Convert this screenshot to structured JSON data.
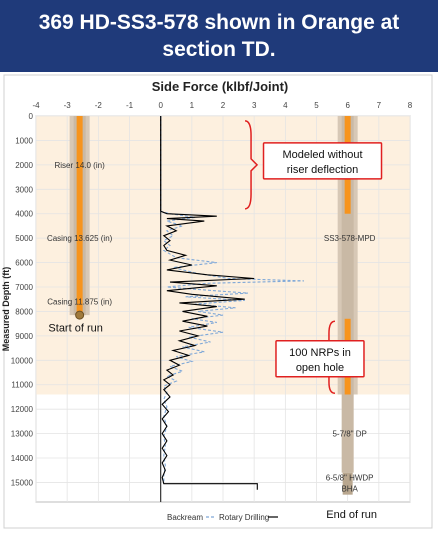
{
  "header": {
    "title": "369 HD-SS3-578 shown in Orange at section TD."
  },
  "chart_data": {
    "type": "line",
    "title": "Side Force (klbf/Joint)",
    "xlabel": "",
    "ylabel": "Measured Depth (ft)",
    "xlim": [
      -4,
      8
    ],
    "ylim": [
      0,
      15800
    ],
    "x_ticks": [
      "-4",
      "-3",
      "-2",
      "-1",
      "0",
      "1",
      "2",
      "3",
      "4",
      "5",
      "6",
      "7",
      "8"
    ],
    "y_ticks": [
      "0",
      "1000",
      "2000",
      "3000",
      "4000",
      "5000",
      "6000",
      "7000",
      "8000",
      "9000",
      "10000",
      "11000",
      "12000",
      "13000",
      "14000",
      "15000"
    ],
    "grid": true,
    "legend": "bottom",
    "shaded_depth_range": [
      0,
      11400
    ],
    "series": [
      {
        "name": "Backream",
        "color": "#7fa8d8",
        "style": "dashed",
        "points": [
          [
            0,
            0
          ],
          [
            0,
            3900
          ],
          [
            0.3,
            4000
          ],
          [
            1.1,
            4150
          ],
          [
            0.2,
            4300
          ],
          [
            0.7,
            4500
          ],
          [
            0.2,
            4700
          ],
          [
            0.4,
            4900
          ],
          [
            0.1,
            5100
          ],
          [
            0.3,
            5300
          ],
          [
            0.1,
            5500
          ],
          [
            0.5,
            5800
          ],
          [
            1.8,
            6000
          ],
          [
            0.4,
            6200
          ],
          [
            1.2,
            6450
          ],
          [
            2.2,
            6650
          ],
          [
            4.6,
            6750
          ],
          [
            1.5,
            6850
          ],
          [
            0.2,
            7000
          ],
          [
            1.2,
            7100
          ],
          [
            2.8,
            7250
          ],
          [
            0.8,
            7400
          ],
          [
            2.7,
            7550
          ],
          [
            1.1,
            7700
          ],
          [
            2.4,
            7850
          ],
          [
            1.2,
            8000
          ],
          [
            2.0,
            8150
          ],
          [
            1.0,
            8300
          ],
          [
            1.8,
            8450
          ],
          [
            0.9,
            8650
          ],
          [
            2.0,
            8850
          ],
          [
            0.9,
            9050
          ],
          [
            1.6,
            9250
          ],
          [
            0.7,
            9450
          ],
          [
            1.4,
            9650
          ],
          [
            0.5,
            9850
          ],
          [
            1.0,
            10050
          ],
          [
            0.3,
            10250
          ],
          [
            0.7,
            10450
          ],
          [
            0.2,
            10650
          ],
          [
            0.5,
            10850
          ],
          [
            0.1,
            11050
          ],
          [
            0.2,
            11300
          ],
          [
            0.1,
            11600
          ],
          [
            0.2,
            11900
          ],
          [
            0.1,
            12300
          ],
          [
            0.2,
            12700
          ],
          [
            0.1,
            13100
          ],
          [
            0.15,
            13500
          ],
          [
            0.1,
            13900
          ],
          [
            0.15,
            14300
          ],
          [
            0.1,
            14700
          ],
          [
            0.1,
            15050
          ]
        ]
      },
      {
        "name": "Rotary Drilling",
        "color": "#000000",
        "style": "solid",
        "points": [
          [
            0,
            0
          ],
          [
            0,
            3900
          ],
          [
            0.2,
            4000
          ],
          [
            1.8,
            4100
          ],
          [
            0.2,
            4200
          ],
          [
            1.4,
            4300
          ],
          [
            0.2,
            4500
          ],
          [
            0.5,
            4700
          ],
          [
            0.1,
            4900
          ],
          [
            0.3,
            5100
          ],
          [
            0.1,
            5300
          ],
          [
            0.2,
            5500
          ],
          [
            0.8,
            5700
          ],
          [
            0.3,
            5900
          ],
          [
            1.0,
            6100
          ],
          [
            0.2,
            6300
          ],
          [
            1.5,
            6500
          ],
          [
            3.0,
            6650
          ],
          [
            0.3,
            6800
          ],
          [
            1.8,
            6950
          ],
          [
            0.2,
            7150
          ],
          [
            1.0,
            7300
          ],
          [
            2.7,
            7500
          ],
          [
            0.6,
            7650
          ],
          [
            1.8,
            7800
          ],
          [
            0.7,
            8000
          ],
          [
            1.5,
            8200
          ],
          [
            0.7,
            8400
          ],
          [
            1.5,
            8600
          ],
          [
            0.6,
            8800
          ],
          [
            1.2,
            9000
          ],
          [
            0.6,
            9200
          ],
          [
            1.1,
            9400
          ],
          [
            0.4,
            9600
          ],
          [
            0.9,
            9800
          ],
          [
            0.3,
            10000
          ],
          [
            0.6,
            10200
          ],
          [
            0.2,
            10400
          ],
          [
            0.4,
            10600
          ],
          [
            0.1,
            10800
          ],
          [
            0.3,
            11000
          ],
          [
            0.1,
            11200
          ],
          [
            0.3,
            11500
          ],
          [
            0.05,
            11800
          ],
          [
            0.25,
            12100
          ],
          [
            0.05,
            12400
          ],
          [
            0.2,
            12700
          ],
          [
            0.05,
            13000
          ],
          [
            0.2,
            13300
          ],
          [
            0.05,
            13600
          ],
          [
            0.2,
            13900
          ],
          [
            0.05,
            14200
          ],
          [
            0.15,
            14500
          ],
          [
            0.05,
            14800
          ],
          [
            0.1,
            15050
          ],
          [
            3.1,
            15050
          ],
          [
            3.1,
            15300
          ]
        ]
      }
    ],
    "casing_labels": [
      {
        "text": "Riser 14.0 (in)",
        "depth": 2000
      },
      {
        "text": "Casing 13.625 (in)",
        "depth": 5000
      },
      {
        "text": "Casing 11.875 (in)",
        "depth": 7600
      }
    ],
    "string_labels": [
      {
        "text": "SS3-578-MPD",
        "depth": 5000
      },
      {
        "text": "5-7/8\" DP",
        "depth": 13000
      },
      {
        "text": "6-5/8\" HWDP",
        "depth": 14800
      },
      {
        "text": "BHA",
        "depth": 15250
      }
    ],
    "annotations": [
      {
        "text": "Modeled without riser deflection",
        "lines": [
          "Modeled without",
          "riser deflection"
        ]
      },
      {
        "text": "100 NRPs in open hole",
        "lines": [
          "100 NRPs in",
          "open hole"
        ]
      },
      {
        "text": "Start of run"
      },
      {
        "text": "End of run"
      }
    ],
    "colors": {
      "orange": "#f7941d",
      "shade": "#fdf0df",
      "tube": "#d4c4b1",
      "callout": "#e02020"
    }
  }
}
